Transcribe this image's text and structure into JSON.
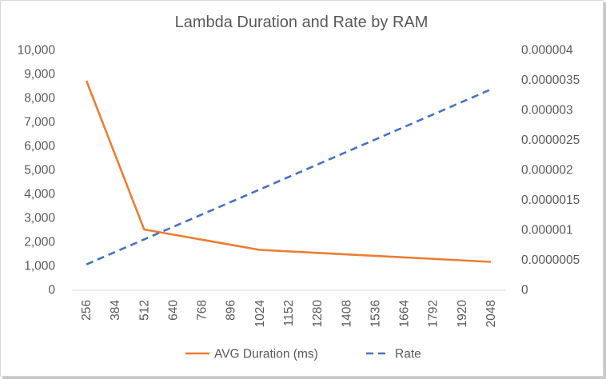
{
  "chart_data": {
    "type": "line",
    "title": "Lambda Duration and Rate by RAM",
    "xlabel": "",
    "ylabel": "",
    "categories": [
      "256",
      "384",
      "512",
      "640",
      "768",
      "896",
      "1024",
      "1152",
      "1280",
      "1408",
      "1536",
      "1664",
      "1792",
      "1920",
      "2048"
    ],
    "y_left": {
      "ylim": [
        0,
        10000
      ],
      "ticks": [
        0,
        1000,
        2000,
        3000,
        4000,
        5000,
        6000,
        7000,
        8000,
        9000,
        10000
      ],
      "tick_labels": [
        "0",
        "1,000",
        "2,000",
        "3,000",
        "4,000",
        "5,000",
        "6,000",
        "7,000",
        "8,000",
        "9,000",
        "10,000"
      ]
    },
    "y_right": {
      "ylim": [
        0,
        4e-06
      ],
      "ticks": [
        0,
        5e-07,
        1e-06,
        1.5e-06,
        2e-06,
        2.5e-06,
        3e-06,
        3.5e-06,
        4e-06
      ],
      "tick_labels": [
        "0",
        "0.0000005",
        "0.000001",
        "0.0000015",
        "0.000002",
        "0.0000025",
        "0.000003",
        "0.0000035",
        "0.000004"
      ]
    },
    "series": [
      {
        "name": "AVG Duration (ms)",
        "axis": "left",
        "color": "#ed7d31",
        "dash": "solid",
        "points": [
          {
            "x": "256",
            "y": 8700
          },
          {
            "x": "512",
            "y": 2500
          },
          {
            "x": "1024",
            "y": 1650
          },
          {
            "x": "2048",
            "y": 1150
          }
        ]
      },
      {
        "name": "Rate",
        "axis": "right",
        "color": "#4472c4",
        "dash": "dashed",
        "points": [
          {
            "x": "256",
            "y": 4.17e-07
          },
          {
            "x": "512",
            "y": 8.34e-07
          },
          {
            "x": "1024",
            "y": 1.667e-06
          },
          {
            "x": "2048",
            "y": 3.334e-06
          }
        ]
      }
    ],
    "legend": "bottom",
    "grid": false
  }
}
